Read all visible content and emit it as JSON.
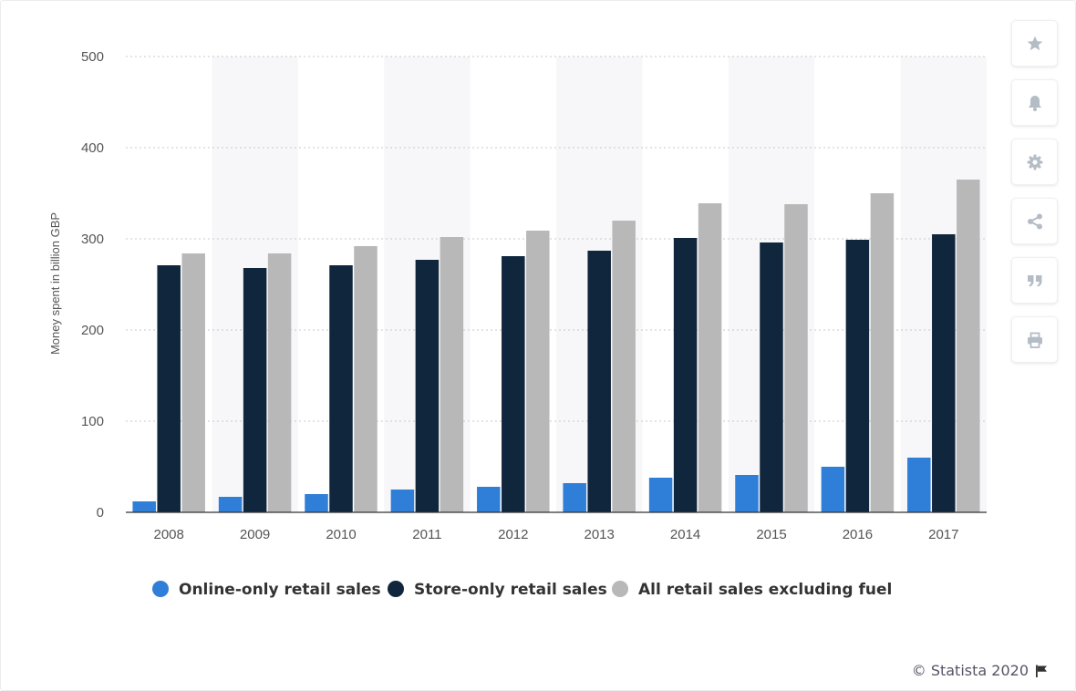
{
  "chart_data": {
    "type": "bar",
    "categories": [
      "2008",
      "2009",
      "2010",
      "2011",
      "2012",
      "2013",
      "2014",
      "2015",
      "2016",
      "2017"
    ],
    "series": [
      {
        "name": "Online-only retail sales",
        "color": "#2f7ed8",
        "values": [
          12,
          17,
          20,
          25,
          28,
          32,
          38,
          41,
          50,
          60
        ]
      },
      {
        "name": "Store-only retail sales",
        "color": "#10263c",
        "values": [
          271,
          268,
          271,
          277,
          281,
          287,
          301,
          296,
          299,
          305
        ]
      },
      {
        "name": "All retail sales excluding fuel",
        "color": "#b8b8b8",
        "values": [
          284,
          284,
          292,
          302,
          309,
          320,
          339,
          338,
          350,
          365
        ]
      }
    ],
    "ylabel": "Money spent in billion GBP",
    "xlabel": "",
    "ylim": [
      0,
      500
    ],
    "yticks": [
      0,
      100,
      200,
      300,
      400,
      500
    ],
    "grid": true,
    "legend": "bottom"
  },
  "toolbar": {
    "buttons": [
      {
        "name": "favorite-button",
        "icon": "star-icon"
      },
      {
        "name": "notification-button",
        "icon": "bell-icon"
      },
      {
        "name": "settings-button",
        "icon": "gear-icon"
      },
      {
        "name": "share-button",
        "icon": "share-icon"
      },
      {
        "name": "cite-button",
        "icon": "quote-icon"
      },
      {
        "name": "print-button",
        "icon": "printer-icon"
      }
    ]
  },
  "footer": {
    "credit": "© Statista 2020"
  }
}
